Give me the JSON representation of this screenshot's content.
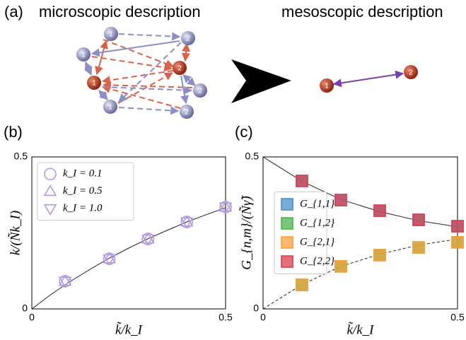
{
  "diagram": {
    "panel_label": "(a)",
    "left_title": "microscopic description",
    "right_title": "mesoscopic description",
    "micro_nodes": [
      "1",
      "1",
      "1",
      "1",
      "2",
      "2",
      "2",
      "2"
    ],
    "meso_nodes": [
      "1",
      "2"
    ]
  },
  "chart_data": [
    {
      "type": "scatter",
      "panel_label": "(b)",
      "xlabel": "k̃/k_I",
      "ylabel": "k/(Ñk_I)",
      "xlim": [
        0,
        0.5
      ],
      "xticks": [
        0,
        0.5
      ],
      "ylim": [
        0,
        0.5
      ],
      "yticks": [
        0,
        0.5
      ],
      "legend": "upper left",
      "x": [
        0.086,
        0.2,
        0.3,
        0.4,
        0.5
      ],
      "series": [
        {
          "name": "k_I = 0.1",
          "color": "#b49ae0",
          "marker": "circle",
          "values": [
            0.091,
            0.165,
            0.23,
            0.286,
            0.335
          ]
        },
        {
          "name": "k_I = 0.5",
          "color": "#b49ae0",
          "marker": "triangle-up",
          "values": [
            0.091,
            0.165,
            0.23,
            0.286,
            0.335
          ]
        },
        {
          "name": "k_I = 1.0",
          "color": "#b49ae0",
          "marker": "triangle-down",
          "values": [
            0.091,
            0.165,
            0.23,
            0.286,
            0.335
          ]
        }
      ],
      "curves": [
        {
          "style": "solid",
          "x": [
            0,
            0.05,
            0.1,
            0.15,
            0.2,
            0.25,
            0.3,
            0.35,
            0.4,
            0.45,
            0.5
          ],
          "values": [
            0,
            0.048,
            0.091,
            0.13,
            0.167,
            0.2,
            0.231,
            0.259,
            0.286,
            0.31,
            0.333
          ]
        }
      ]
    },
    {
      "type": "scatter",
      "panel_label": "(c)",
      "xlabel": "k̃/k_I",
      "ylabel": "G_{n,m}/(Ñγ̃)",
      "xlim": [
        0,
        0.5
      ],
      "xticks": [
        0,
        0.5
      ],
      "ylim": [
        0,
        0.5
      ],
      "yticks": [
        0,
        0.5
      ],
      "legend": "center left",
      "x": [
        0.1,
        0.2,
        0.3,
        0.4,
        0.5
      ],
      "series": [
        {
          "name": "G_{1,1}",
          "color": "#4a90c8",
          "marker": "square",
          "values": [
            0.421,
            0.358,
            0.323,
            0.293,
            0.272
          ]
        },
        {
          "name": "G_{1,2}",
          "color": "#4cb24c",
          "marker": "square",
          "values": [
            0.079,
            0.14,
            0.177,
            0.202,
            0.219
          ]
        },
        {
          "name": "G_{2,1}",
          "color": "#f5a03c",
          "marker": "square",
          "values": [
            0.079,
            0.14,
            0.177,
            0.202,
            0.219
          ]
        },
        {
          "name": "G_{2,2}",
          "color": "#d9404e",
          "marker": "square",
          "values": [
            0.421,
            0.358,
            0.323,
            0.293,
            0.272
          ]
        }
      ],
      "curves": [
        {
          "style": "solid",
          "x": [
            0,
            0.1,
            0.2,
            0.3,
            0.4,
            0.5
          ],
          "values": [
            0.5,
            0.42,
            0.36,
            0.32,
            0.29,
            0.27
          ]
        },
        {
          "style": "dashed",
          "x": [
            0,
            0.1,
            0.2,
            0.3,
            0.4,
            0.5
          ],
          "values": [
            0,
            0.08,
            0.14,
            0.18,
            0.21,
            0.23
          ]
        }
      ]
    }
  ]
}
